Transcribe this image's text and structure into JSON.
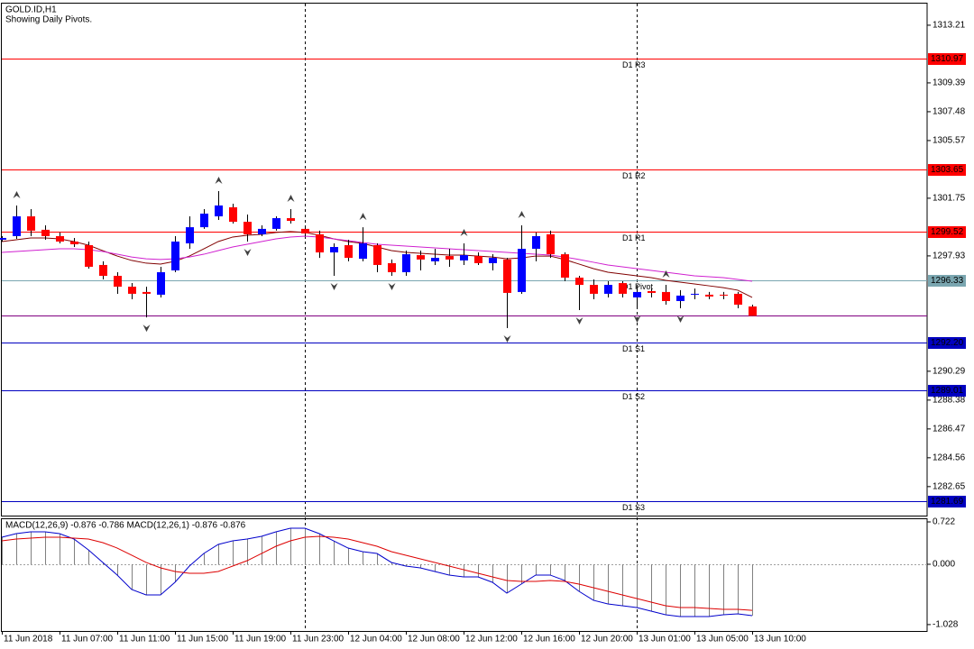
{
  "header": {
    "symbol": "GOLD.ID,H1",
    "note": "Showing Daily Pivots."
  },
  "chart_data": [
    {
      "type": "candlestick",
      "categories": [
        "11 Jun 2018",
        null,
        null,
        null,
        "11 Jun 07:00",
        null,
        null,
        null,
        "11 Jun 11:00",
        null,
        null,
        null,
        "11 Jun 15:00",
        null,
        null,
        null,
        "11 Jun 19:00",
        null,
        null,
        null,
        "11 Jun 23:00",
        null,
        null,
        null,
        "12 Jun 04:00",
        null,
        null,
        null,
        "12 Jun 08:00",
        null,
        null,
        null,
        "12 Jun 12:00",
        null,
        null,
        null,
        "12 Jun 16:00",
        null,
        null,
        null,
        "12 Jun 20:00",
        null,
        null,
        null,
        "13 Jun 01:00",
        null,
        null,
        null,
        "13 Jun 05:00",
        null,
        null,
        null,
        "13 Jun 10:00"
      ],
      "open": [
        1299.0,
        1299.24,
        1300.55,
        1299.66,
        1299.24,
        1298.88,
        1298.64,
        1297.33,
        1296.61,
        1295.89,
        1295.54,
        1295.36,
        1296.97,
        1298.76,
        1299.83,
        1300.55,
        1301.15,
        1300.19,
        1299.36,
        1299.72,
        1300.43,
        1299.72,
        1299.36,
        1298.16,
        1298.64,
        1297.74,
        1298.64,
        1297.45,
        1296.85,
        1297.98,
        1297.57,
        1297.92,
        1297.63,
        1297.92,
        1297.45,
        1297.69,
        1295.54,
        1298.4,
        1299.36,
        1298.04,
        1296.49,
        1296.01,
        1295.42,
        1296.13,
        1295.18,
        1295.6,
        1295.54,
        1294.94,
        1295.36,
        1295.36,
        1295.36,
        1295.42,
        1294.58
      ],
      "high": [
        1299.24,
        1301.27,
        1301.03,
        1299.95,
        1299.48,
        1299.12,
        1298.88,
        1297.57,
        1296.85,
        1296.13,
        1295.89,
        1297.21,
        1299.24,
        1300.55,
        1301.03,
        1302.22,
        1301.39,
        1300.67,
        1299.95,
        1300.55,
        1301.03,
        1299.83,
        1299.6,
        1298.76,
        1299.0,
        1299.83,
        1298.76,
        1297.69,
        1298.28,
        1298.28,
        1298.4,
        1298.4,
        1298.76,
        1298.16,
        1298.04,
        1297.8,
        1299.95,
        1299.48,
        1299.6,
        1298.16,
        1296.61,
        1296.37,
        1296.25,
        1296.25,
        1296.01,
        1295.77,
        1296.01,
        1295.66,
        1295.77,
        1295.54,
        1295.54,
        1295.54,
        1294.7
      ],
      "low": [
        1298.88,
        1299.06,
        1299.24,
        1299.0,
        1298.76,
        1298.52,
        1297.09,
        1296.37,
        1295.42,
        1295.06,
        1293.86,
        1295.18,
        1296.85,
        1298.4,
        1299.72,
        1300.31,
        1300.07,
        1298.88,
        1299.24,
        1299.6,
        1300.07,
        1299.24,
        1297.8,
        1296.61,
        1297.57,
        1297.57,
        1296.85,
        1296.61,
        1296.61,
        1296.97,
        1297.33,
        1297.21,
        1297.33,
        1297.33,
        1296.97,
        1293.15,
        1295.42,
        1297.57,
        1297.8,
        1296.25,
        1294.34,
        1295.06,
        1295.18,
        1295.18,
        1294.46,
        1295.18,
        1294.7,
        1294.46,
        1295.06,
        1295.06,
        1295.06,
        1294.46,
        1293.96
      ],
      "close": [
        1299.12,
        1300.55,
        1299.6,
        1299.24,
        1298.88,
        1298.7,
        1297.21,
        1296.61,
        1295.89,
        1295.42,
        1295.42,
        1296.85,
        1298.88,
        1299.83,
        1300.73,
        1301.27,
        1300.19,
        1299.36,
        1299.72,
        1300.43,
        1300.25,
        1299.42,
        1298.16,
        1298.52,
        1297.8,
        1298.76,
        1297.33,
        1296.85,
        1298.04,
        1297.69,
        1297.8,
        1297.69,
        1297.98,
        1297.45,
        1297.8,
        1295.48,
        1298.4,
        1299.24,
        1298.04,
        1296.49,
        1296.01,
        1295.42,
        1296.01,
        1295.42,
        1295.54,
        1295.48,
        1294.94,
        1295.3,
        1295.42,
        1295.24,
        1295.3,
        1294.7,
        1293.96
      ],
      "up_color": "#0000ff",
      "down_color": "#ff0000",
      "wick_color": "#000000",
      "moving_averages": [
        {
          "color": "#800000",
          "values": [
            1298.88,
            1299.0,
            1299.12,
            1299.12,
            1299.06,
            1298.88,
            1298.64,
            1298.28,
            1297.92,
            1297.63,
            1297.45,
            1297.39,
            1297.57,
            1297.92,
            1298.4,
            1298.88,
            1299.18,
            1299.3,
            1299.36,
            1299.48,
            1299.54,
            1299.48,
            1299.3,
            1299.06,
            1298.88,
            1298.76,
            1298.52,
            1298.28,
            1298.16,
            1298.1,
            1298.04,
            1297.98,
            1297.98,
            1297.92,
            1297.86,
            1297.74,
            1297.8,
            1297.92,
            1297.92,
            1297.69,
            1297.39,
            1297.09,
            1296.85,
            1296.73,
            1296.61,
            1296.49,
            1296.31,
            1296.19,
            1296.07,
            1295.95,
            1295.83,
            1295.66,
            1295.18
          ]
        },
        {
          "color": "#d020d0",
          "values": [
            1298.16,
            1298.22,
            1298.28,
            1298.34,
            1298.4,
            1298.4,
            1298.34,
            1298.22,
            1298.04,
            1297.86,
            1297.74,
            1297.69,
            1297.74,
            1297.86,
            1298.04,
            1298.28,
            1298.52,
            1298.7,
            1298.88,
            1299.06,
            1299.18,
            1299.24,
            1299.18,
            1299.06,
            1298.94,
            1298.82,
            1298.7,
            1298.64,
            1298.58,
            1298.52,
            1298.46,
            1298.4,
            1298.34,
            1298.28,
            1298.22,
            1298.16,
            1298.1,
            1298.04,
            1297.98,
            1297.86,
            1297.69,
            1297.51,
            1297.33,
            1297.21,
            1297.09,
            1296.97,
            1296.85,
            1296.73,
            1296.61,
            1296.55,
            1296.49,
            1296.37,
            1296.25
          ]
        }
      ],
      "fractal_color": "#404040",
      "fractal_up": [
        null,
        1301.27,
        null,
        null,
        null,
        null,
        null,
        null,
        null,
        null,
        null,
        null,
        null,
        null,
        null,
        1302.22,
        null,
        null,
        null,
        null,
        1301.03,
        null,
        null,
        null,
        null,
        1299.83,
        null,
        null,
        null,
        null,
        null,
        null,
        1298.76,
        null,
        null,
        null,
        1299.95,
        null,
        null,
        null,
        null,
        null,
        null,
        null,
        null,
        null,
        1296.01,
        null,
        null,
        null,
        null,
        null,
        null
      ],
      "fractal_down": [
        null,
        null,
        null,
        null,
        null,
        null,
        null,
        null,
        null,
        null,
        1293.86,
        null,
        null,
        null,
        null,
        null,
        null,
        1298.88,
        null,
        null,
        null,
        null,
        null,
        1296.61,
        null,
        null,
        null,
        1296.61,
        null,
        null,
        null,
        null,
        null,
        null,
        null,
        1293.15,
        null,
        null,
        null,
        null,
        1294.34,
        null,
        null,
        null,
        1294.46,
        null,
        null,
        1294.46,
        null,
        null,
        null,
        null,
        null
      ],
      "levels": [
        {
          "name": "D1 R3",
          "price": 1310.97,
          "color": "#ff0000",
          "label_color": "#ffffff"
        },
        {
          "name": "D1 R2",
          "price": 1303.65,
          "color": "#ff0000",
          "label_color": "#ffffff"
        },
        {
          "name": "D1 R1",
          "price": 1299.52,
          "color": "#ff0000",
          "label_color": "#ffffff"
        },
        {
          "name": "D1 Pivot",
          "price": 1296.33,
          "color": "#7aa6b0",
          "label_color": "#203040"
        },
        {
          "name": "D1 S1",
          "price": {
            "value": 1292.2,
            "label": "1292.20"
          },
          "color": "#0000c0",
          "label_color": "#ffffff"
        },
        {
          "name": "D1 S2",
          "price": 1289.01,
          "color": "#0000c0",
          "label_color": "#ffffff"
        },
        {
          "name": "D1 S3",
          "price": 1281.69,
          "color": "#0000c0",
          "label_color": "#ffffff"
        }
      ],
      "current_price": {
        "price": 1293.96,
        "color": "#800080",
        "label_color": "#ffffff"
      },
      "ylim": [
        1280.73,
        1314.64
      ],
      "yticks": [
        1313.21,
        1309.39,
        1307.48,
        1305.57,
        1301.75,
        1297.93,
        1290.29,
        1288.38,
        1286.47,
        1284.56,
        1282.65
      ]
    },
    {
      "type": "macd",
      "title": "MACD(12,26,9) -0.876 -0.786 MACD(12,26,1) -0.876 -0.876",
      "macd": {
        "color": "#0000cc",
        "values": [
          0.461,
          0.522,
          0.553,
          0.553,
          0.522,
          0.43,
          0.246,
          0.031,
          -0.184,
          -0.43,
          -0.522,
          -0.522,
          -0.307,
          -0.031,
          0.184,
          0.338,
          0.399,
          0.43,
          0.476,
          0.553,
          0.614,
          0.614,
          0.522,
          0.399,
          0.276,
          0.215,
          0.184,
          0.031,
          -0.031,
          -0.061,
          -0.123,
          -0.184,
          -0.215,
          -0.215,
          -0.307,
          -0.492,
          -0.338,
          -0.184,
          -0.184,
          -0.276,
          -0.461,
          -0.614,
          -0.676,
          -0.707,
          -0.737,
          -0.799,
          -0.86,
          -0.891,
          -0.891,
          -0.891,
          -0.86,
          -0.845,
          -0.876
        ]
      },
      "signal": {
        "color": "#dd0000",
        "values": [
          0.399,
          0.43,
          0.445,
          0.461,
          0.461,
          0.445,
          0.43,
          0.369,
          0.276,
          0.154,
          0.031,
          -0.061,
          -0.123,
          -0.154,
          -0.154,
          -0.123,
          -0.031,
          0.061,
          0.184,
          0.307,
          0.399,
          0.461,
          0.476,
          0.461,
          0.43,
          0.369,
          0.307,
          0.215,
          0.154,
          0.092,
          0.031,
          -0.031,
          -0.092,
          -0.154,
          -0.215,
          -0.276,
          -0.292,
          -0.292,
          -0.276,
          -0.292,
          -0.338,
          -0.399,
          -0.461,
          -0.522,
          -0.584,
          -0.645,
          -0.707,
          -0.737,
          -0.737,
          -0.753,
          -0.768,
          -0.768,
          -0.786
        ]
      },
      "histogram_color": "#808080",
      "ylim": [
        -1.137,
        0.768
      ],
      "yticks": [
        0.722,
        {
          "value": 0,
          "label": "0.000"
        },
        -1.028
      ]
    }
  ]
}
